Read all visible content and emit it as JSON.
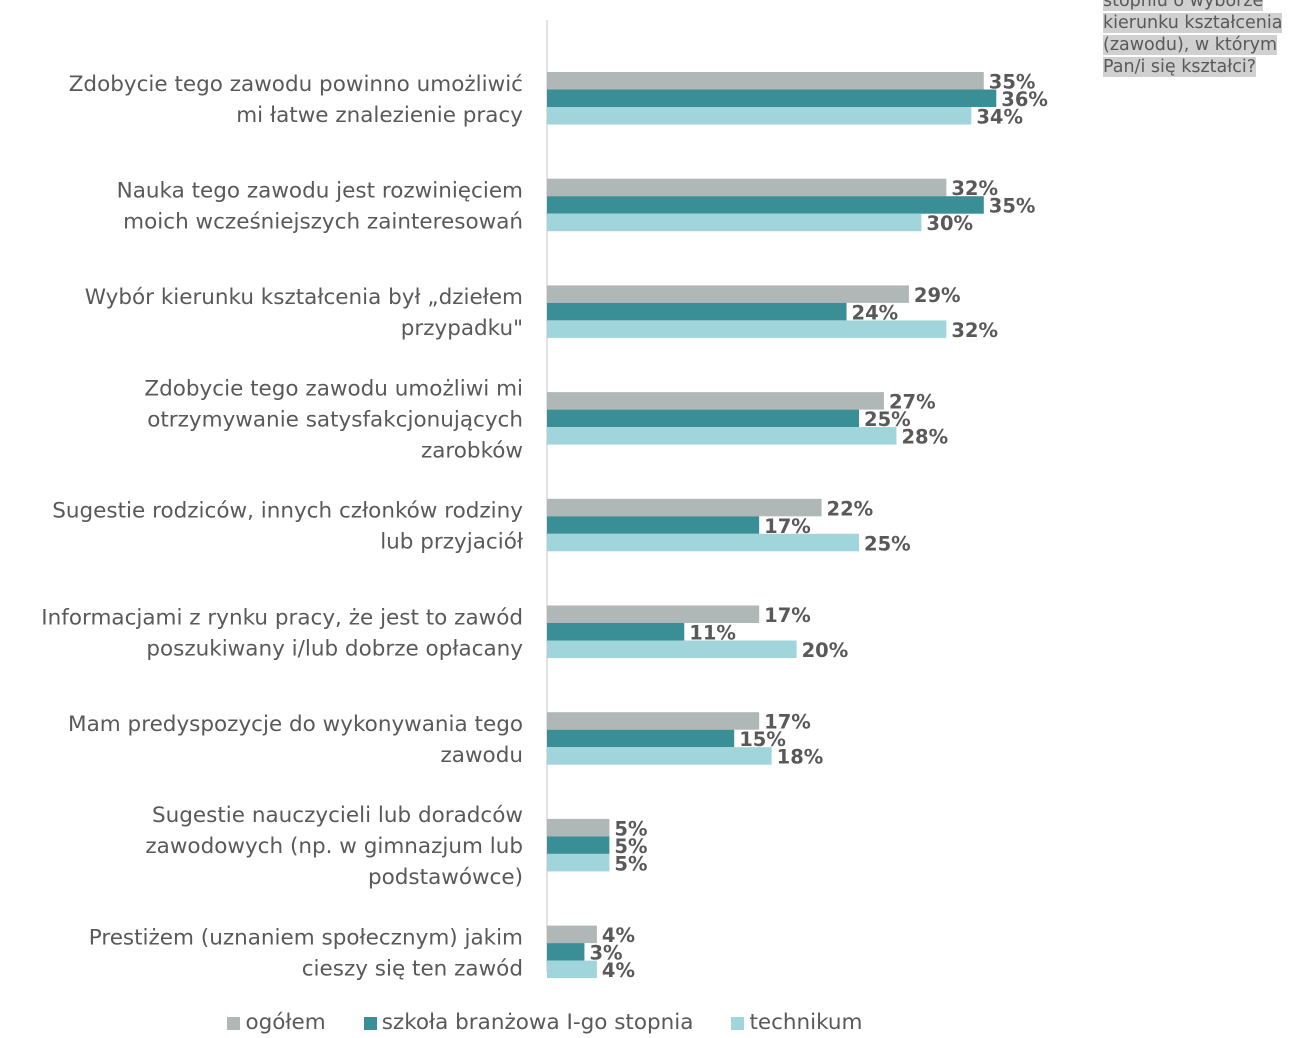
{
  "note": {
    "lines": [
      "stopniu o wyborze",
      "kierunku kształcenia",
      "(zawodu), w którym",
      "Pan/i się kształci?"
    ]
  },
  "chart_data": {
    "type": "bar",
    "orientation": "horizontal",
    "categories": [
      [
        "Zdobycie tego zawodu powinno umożliwić",
        "mi łatwe znalezienie pracy"
      ],
      [
        "Nauka tego zawodu jest rozwinięciem",
        "moich wcześniejszych zainteresowań"
      ],
      [
        "Wybór kierunku kształcenia był „dziełem",
        "przypadku\""
      ],
      [
        "Zdobycie tego zawodu umożliwi mi",
        "otrzymywanie satysfakcjonujących",
        "zarobków"
      ],
      [
        "Sugestie rodziców, innych członków rodziny",
        "lub przyjaciół"
      ],
      [
        "Informacjami z rynku pracy, że jest to zawód",
        "poszukiwany i/lub dobrze opłacany"
      ],
      [
        "Mam predyspozycje do wykonywania tego",
        "zawodu"
      ],
      [
        "Sugestie nauczycieli lub doradców",
        "zawodowych (np. w gimnazjum lub",
        "podstawówce)"
      ],
      [
        "Prestiżem (uznaniem społecznym) jakim",
        "cieszy się ten zawód"
      ]
    ],
    "series": [
      {
        "name": "ogółem",
        "color": "#b0b7b7",
        "values": [
          35,
          32,
          29,
          27,
          22,
          17,
          17,
          5,
          4
        ]
      },
      {
        "name": "szkoła branżowa I-go stopnia",
        "color": "#3a8e96",
        "values": [
          36,
          35,
          24,
          25,
          17,
          11,
          15,
          5,
          3
        ]
      },
      {
        "name": "technikum",
        "color": "#9fd5db",
        "values": [
          34,
          30,
          32,
          28,
          25,
          20,
          18,
          5,
          4
        ]
      }
    ],
    "value_suffix": "%",
    "xlim": [
      0,
      40
    ],
    "legend_position": "bottom",
    "grid": false,
    "colors": {
      "label_text": "#595959",
      "value_text": "#595959",
      "axis_line": "#d9d9d9"
    }
  }
}
